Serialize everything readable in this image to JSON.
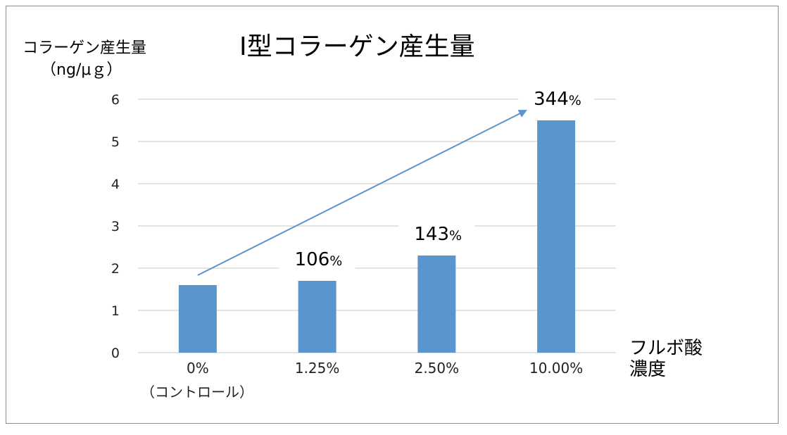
{
  "chart_data": {
    "type": "bar",
    "title": "Ⅰ型コラーゲン産生量",
    "ylabel_line1": "コラーゲン産生量",
    "ylabel_line2": "（ng/μｇ）",
    "xlabel_line1": "フルボ酸",
    "xlabel_line2": "濃度",
    "categories": [
      "0%",
      "1.25%",
      "2.50%",
      "10.00%"
    ],
    "category_sublabel": "（コントロール）",
    "values": [
      1.6,
      1.7,
      2.3,
      5.5
    ],
    "data_labels": [
      "",
      "106",
      "143",
      "344"
    ],
    "data_label_unit": "%",
    "ylim": [
      0,
      6
    ],
    "yticks": [
      0,
      1,
      2,
      3,
      4,
      5,
      6
    ],
    "grid": true,
    "bar_color": "#5b95cd",
    "arrow_color": "#5b95cd",
    "grid_color": "#c9c9c9"
  }
}
